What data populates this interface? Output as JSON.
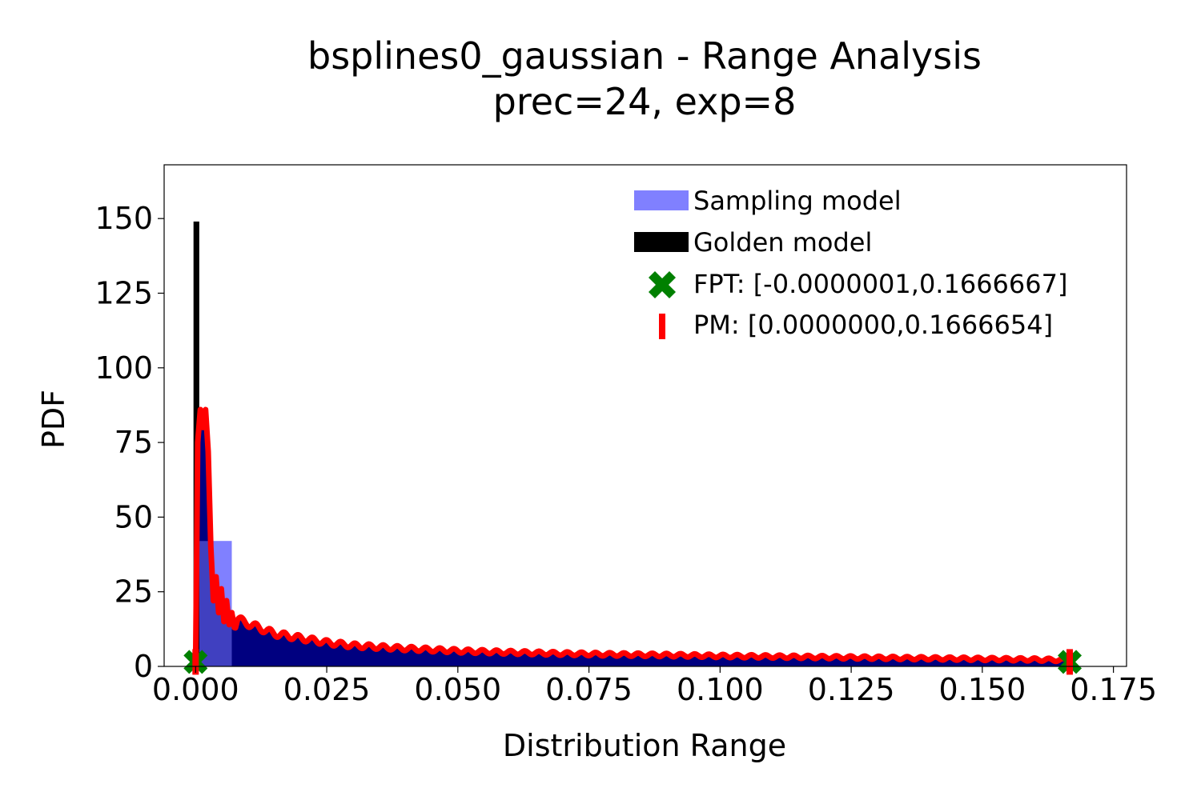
{
  "chart_data": {
    "type": "area",
    "title": "bsplines0_gaussian - Range Analysis",
    "subtitle": "prec=24, exp=8",
    "xlabel": "Distribution Range",
    "ylabel": "PDF",
    "xlim": [
      -0.006,
      0.1775
    ],
    "ylim": [
      0,
      168
    ],
    "xticks": [
      0.0,
      0.025,
      0.05,
      0.075,
      0.1,
      0.125,
      0.15,
      0.175
    ],
    "xtick_labels": [
      "0.000",
      "0.025",
      "0.050",
      "0.075",
      "0.100",
      "0.125",
      "0.150",
      "0.175"
    ],
    "yticks": [
      0,
      25,
      50,
      75,
      100,
      125,
      150
    ],
    "ytick_labels": [
      "0",
      "25",
      "50",
      "75",
      "100",
      "125",
      "150"
    ],
    "grid": false,
    "legend_position": "top-right",
    "legend": [
      {
        "label": "Sampling model",
        "kind": "patch"
      },
      {
        "label": "Golden model",
        "kind": "bar"
      },
      {
        "label": "FPT: [-0.0000001,0.1666667]",
        "kind": "x-marker"
      },
      {
        "label": "PM: [0.0000000,0.1666654]",
        "kind": "vline-marker"
      }
    ],
    "sampling_histogram": {
      "name": "Sampling model",
      "color": "#8080ff",
      "bins": [
        {
          "x0": 0.0,
          "x1": 0.0069,
          "y": 42
        },
        {
          "x0": 0.0069,
          "x1": 0.0139,
          "y": 11
        },
        {
          "x0": 0.0139,
          "x1": 0.0208,
          "y": 7.5
        },
        {
          "x0": 0.0208,
          "x1": 0.0278,
          "y": 6
        },
        {
          "x0": 0.0278,
          "x1": 0.0347,
          "y": 5.2
        },
        {
          "x0": 0.0347,
          "x1": 0.0417,
          "y": 4.7
        }
      ]
    },
    "golden_bar": {
      "name": "Golden model",
      "x": 0.00015,
      "width": 0.0011,
      "y": 149,
      "color": "#000000"
    },
    "golden_fill_color": "#000080",
    "pm_curve": {
      "name": "PM",
      "color": "#ff0000",
      "x": [
        -0.0003,
        0.0,
        0.0004,
        0.0009,
        0.0014,
        0.0019,
        0.0024,
        0.0029,
        0.0034,
        0.0039,
        0.0044,
        0.0049,
        0.0054,
        0.0059,
        0.0064,
        0.0069,
        0.0074,
        0.008,
        0.009,
        0.0105,
        0.012,
        0.015,
        0.02,
        0.025,
        0.03,
        0.035,
        0.04,
        0.05,
        0.06,
        0.07,
        0.08,
        0.09,
        0.1,
        0.11,
        0.12,
        0.13,
        0.14,
        0.15,
        0.16,
        0.1666
      ],
      "y": [
        0,
        0,
        75,
        86,
        80,
        86,
        72,
        40,
        22,
        30,
        18,
        26,
        15,
        22,
        14,
        18,
        13,
        16,
        15,
        14,
        13,
        11,
        9.5,
        8,
        7,
        6.5,
        6,
        5.2,
        4.7,
        4.3,
        4,
        3.8,
        3.5,
        3.3,
        3.1,
        2.9,
        2.7,
        2.5,
        2.3,
        2.1
      ]
    },
    "fpt_markers": {
      "name": "FPT",
      "x": [
        -1e-07,
        0.1666667
      ],
      "y": 1.5,
      "color": "#008000"
    },
    "pm_markers": {
      "name": "PM",
      "x": [
        0.0,
        0.1666654
      ],
      "y": 1.5,
      "color": "#ff0000"
    }
  }
}
